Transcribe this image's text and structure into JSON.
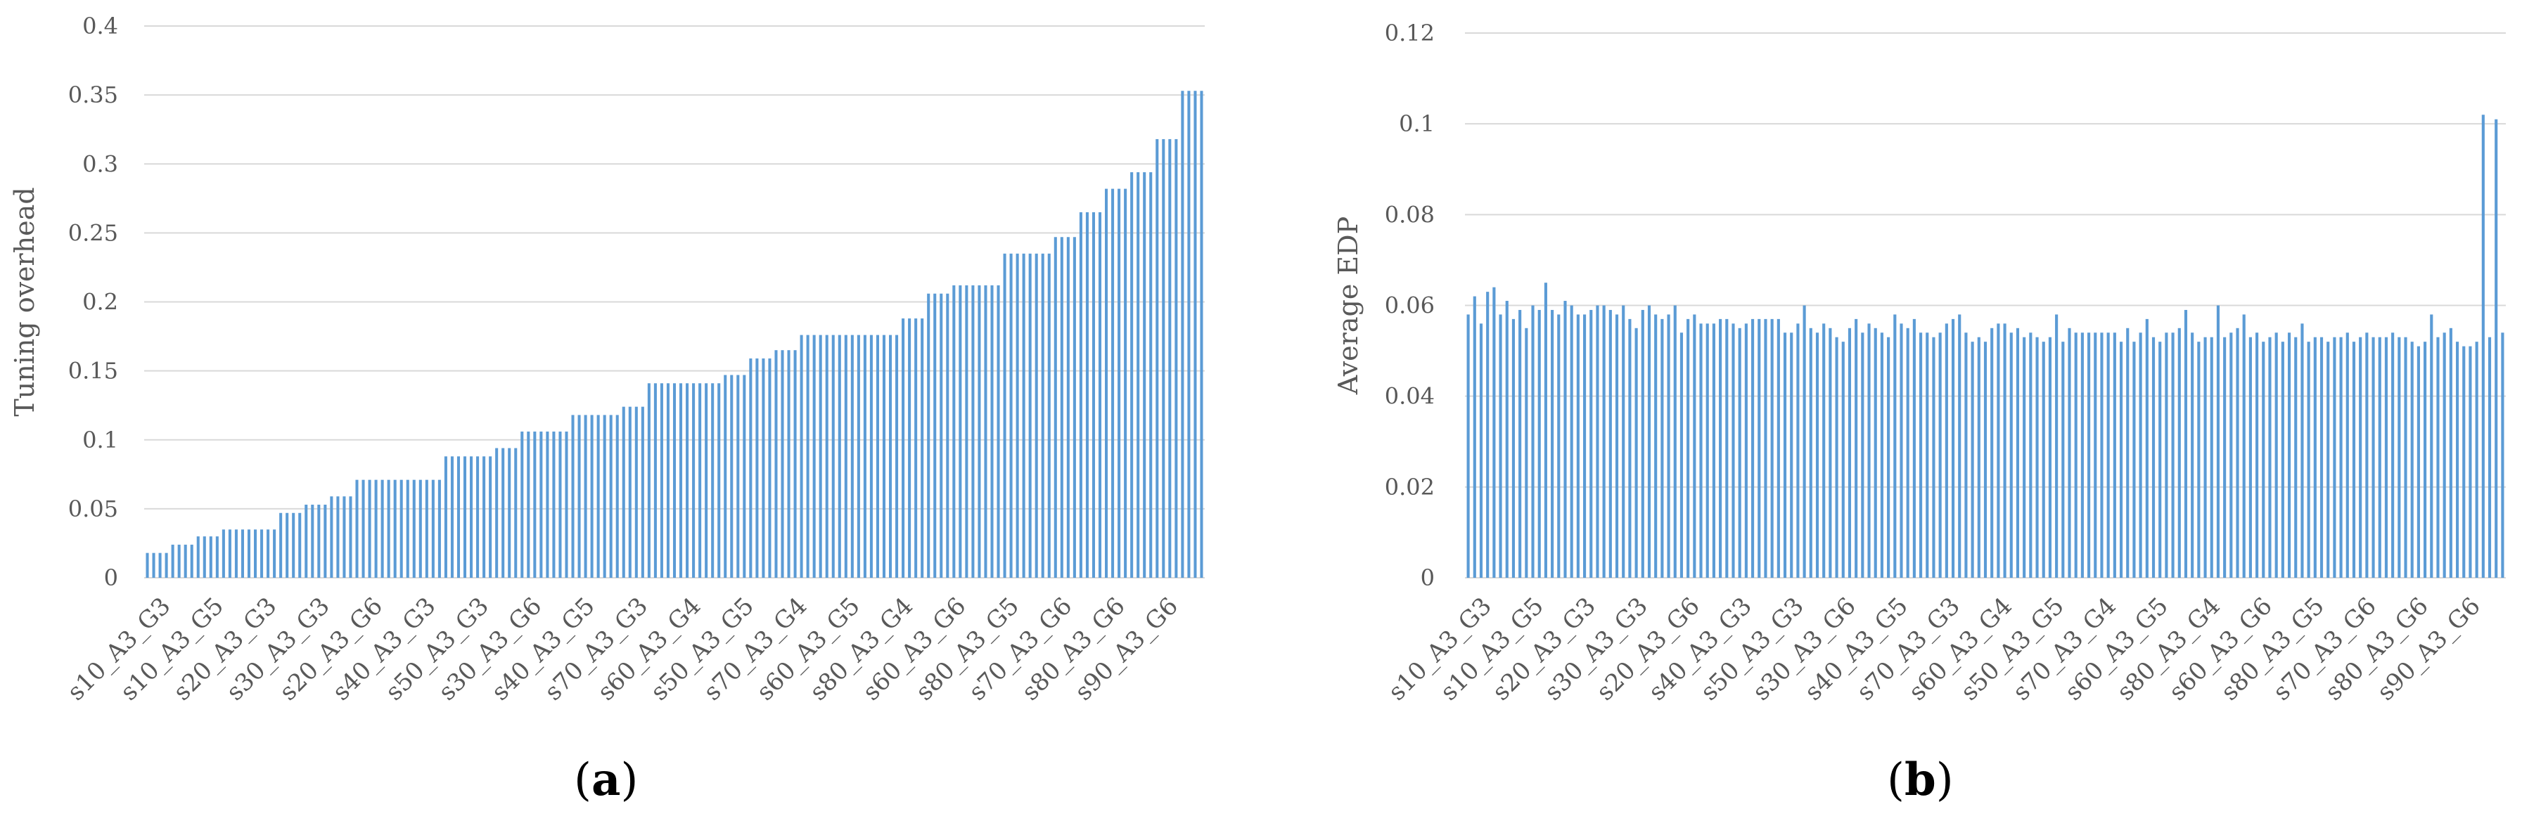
{
  "panels": {
    "a": {
      "open": "(",
      "letter": "a",
      "close": ")"
    },
    "b": {
      "open": "(",
      "letter": "b",
      "close": ")"
    }
  },
  "colors": {
    "bar": "#5B9BD5",
    "grid": "#D9D9D9",
    "axis": "#D9D9D9",
    "text": "#595959"
  },
  "chart_data": [
    {
      "type": "bar",
      "title": "",
      "xlabel": "",
      "ylabel": "Tuning overhead",
      "ylim": [
        0,
        0.4
      ],
      "yticks": [
        0,
        0.05,
        0.1,
        0.15,
        0.2,
        0.25,
        0.3,
        0.35,
        0.4
      ],
      "ytick_labels": [
        "0",
        "0.05",
        "0.1",
        "0.15",
        "0.2",
        "0.25",
        "0.3",
        "0.35",
        "0.4"
      ],
      "grid": true,
      "legend": "none",
      "category_labels_shown": [
        "s10_A3_G3",
        "s10_A3_G5",
        "s20_A3_G3",
        "s30_A3_G3",
        "s20_A3_G6",
        "s40_A3_G3",
        "s50_A3_G3",
        "s30_A3_G6",
        "s40_A3_G5",
        "s70_A3_G3",
        "s60_A3_G4",
        "s50_A3_G5",
        "s70_A3_G4",
        "s60_A3_G5",
        "s80_A3_G4",
        "s60_A3_G6",
        "s80_A3_G5",
        "s70_A3_G6",
        "s80_A3_G6",
        "s90_A3_G6"
      ],
      "values": [
        0.018,
        0.018,
        0.018,
        0.018,
        0.024,
        0.024,
        0.024,
        0.024,
        0.03,
        0.03,
        0.03,
        0.03,
        0.035,
        0.035,
        0.035,
        0.035,
        0.035,
        0.035,
        0.035,
        0.035,
        0.035,
        0.047,
        0.047,
        0.047,
        0.047,
        0.053,
        0.053,
        0.053,
        0.053,
        0.059,
        0.059,
        0.059,
        0.059,
        0.071,
        0.071,
        0.071,
        0.071,
        0.071,
        0.071,
        0.071,
        0.071,
        0.071,
        0.071,
        0.071,
        0.071,
        0.071,
        0.071,
        0.088,
        0.088,
        0.088,
        0.088,
        0.088,
        0.088,
        0.088,
        0.088,
        0.094,
        0.094,
        0.094,
        0.094,
        0.106,
        0.106,
        0.106,
        0.106,
        0.106,
        0.106,
        0.106,
        0.106,
        0.118,
        0.118,
        0.118,
        0.118,
        0.118,
        0.118,
        0.118,
        0.118,
        0.124,
        0.124,
        0.124,
        0.124,
        0.141,
        0.141,
        0.141,
        0.141,
        0.141,
        0.141,
        0.141,
        0.141,
        0.141,
        0.141,
        0.141,
        0.141,
        0.147,
        0.147,
        0.147,
        0.147,
        0.159,
        0.159,
        0.159,
        0.159,
        0.165,
        0.165,
        0.165,
        0.165,
        0.176,
        0.176,
        0.176,
        0.176,
        0.176,
        0.176,
        0.176,
        0.176,
        0.176,
        0.176,
        0.176,
        0.176,
        0.176,
        0.176,
        0.176,
        0.176,
        0.188,
        0.188,
        0.188,
        0.188,
        0.206,
        0.206,
        0.206,
        0.206,
        0.212,
        0.212,
        0.212,
        0.212,
        0.212,
        0.212,
        0.212,
        0.212,
        0.235,
        0.235,
        0.235,
        0.235,
        0.235,
        0.235,
        0.235,
        0.235,
        0.247,
        0.247,
        0.247,
        0.247,
        0.265,
        0.265,
        0.265,
        0.265,
        0.282,
        0.282,
        0.282,
        0.282,
        0.294,
        0.294,
        0.294,
        0.294,
        0.318,
        0.318,
        0.318,
        0.318,
        0.353,
        0.353,
        0.353,
        0.353
      ]
    },
    {
      "type": "bar",
      "title": "",
      "xlabel": "",
      "ylabel": "Average EDP",
      "ylim": [
        0,
        0.12
      ],
      "yticks": [
        0,
        0.02,
        0.04,
        0.06,
        0.08,
        0.1,
        0.12
      ],
      "ytick_labels": [
        "0",
        "0.02",
        "0.04",
        "0.06",
        "0.08",
        "0.1",
        "0.12"
      ],
      "grid": true,
      "legend": "none",
      "category_labels_shown": [
        "s10_A3_G3",
        "s10_A3_G5",
        "s20_A3_G3",
        "s30_A3_G3",
        "s20_A3_G6",
        "s40_A3_G3",
        "s50_A3_G3",
        "s30_A3_G6",
        "s40_A3_G5",
        "s70_A3_G3",
        "s60_A3_G4",
        "s50_A3_G5",
        "s70_A3_G4",
        "s60_A3_G5",
        "s80_A3_G4",
        "s60_A3_G6",
        "s80_A3_G5",
        "s70_A3_G6",
        "s80_A3_G6",
        "s90_A3_G6"
      ],
      "values": [
        0.058,
        0.062,
        0.056,
        0.063,
        0.064,
        0.058,
        0.061,
        0.057,
        0.059,
        0.055,
        0.06,
        0.059,
        0.065,
        0.059,
        0.058,
        0.061,
        0.06,
        0.058,
        0.058,
        0.059,
        0.06,
        0.06,
        0.059,
        0.058,
        0.06,
        0.057,
        0.055,
        0.059,
        0.06,
        0.058,
        0.057,
        0.058,
        0.06,
        0.054,
        0.057,
        0.058,
        0.056,
        0.056,
        0.056,
        0.057,
        0.057,
        0.056,
        0.055,
        0.056,
        0.057,
        0.057,
        0.057,
        0.057,
        0.057,
        0.054,
        0.054,
        0.056,
        0.06,
        0.055,
        0.054,
        0.056,
        0.055,
        0.053,
        0.052,
        0.055,
        0.057,
        0.054,
        0.056,
        0.055,
        0.054,
        0.053,
        0.058,
        0.056,
        0.055,
        0.057,
        0.054,
        0.054,
        0.053,
        0.054,
        0.056,
        0.057,
        0.058,
        0.054,
        0.052,
        0.053,
        0.052,
        0.055,
        0.056,
        0.056,
        0.054,
        0.055,
        0.053,
        0.054,
        0.053,
        0.052,
        0.053,
        0.058,
        0.052,
        0.055,
        0.054,
        0.054,
        0.054,
        0.054,
        0.054,
        0.054,
        0.054,
        0.052,
        0.055,
        0.052,
        0.054,
        0.057,
        0.053,
        0.052,
        0.054,
        0.054,
        0.055,
        0.059,
        0.054,
        0.052,
        0.053,
        0.053,
        0.06,
        0.053,
        0.054,
        0.055,
        0.058,
        0.053,
        0.054,
        0.052,
        0.053,
        0.054,
        0.052,
        0.054,
        0.053,
        0.056,
        0.052,
        0.053,
        0.053,
        0.052,
        0.053,
        0.053,
        0.054,
        0.052,
        0.053,
        0.054,
        0.053,
        0.053,
        0.053,
        0.054,
        0.053,
        0.053,
        0.052,
        0.051,
        0.052,
        0.058,
        0.053,
        0.054,
        0.055,
        0.052,
        0.051,
        0.051,
        0.052,
        0.102,
        0.053,
        0.101,
        0.054
      ]
    }
  ]
}
